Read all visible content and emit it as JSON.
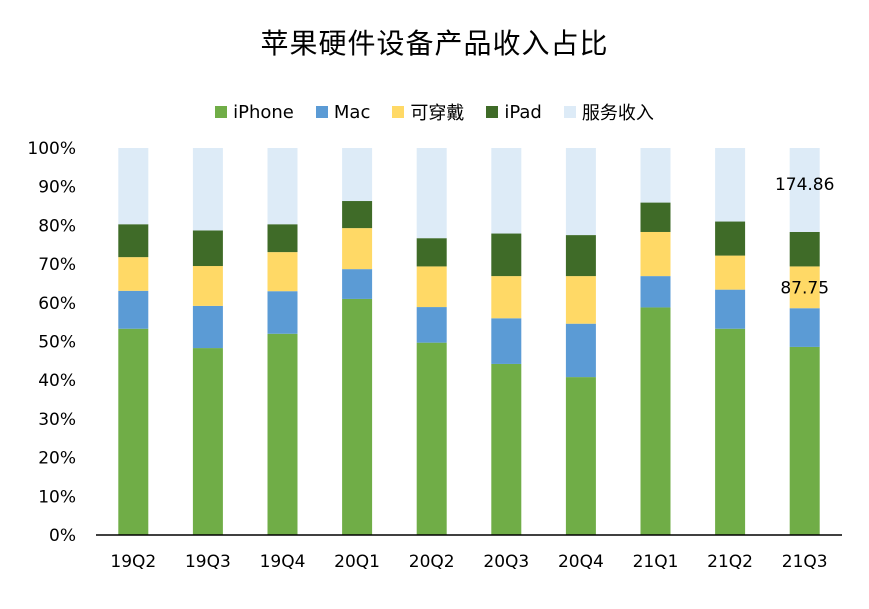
{
  "chart_data": {
    "type": "bar",
    "stacked": true,
    "title": "苹果硬件设备产品收入占比",
    "categories": [
      "19Q2",
      "19Q3",
      "19Q4",
      "20Q1",
      "20Q2",
      "20Q3",
      "20Q4",
      "21Q1",
      "21Q2",
      "21Q3"
    ],
    "series": [
      {
        "name": "iPhone",
        "color": "#70ad47",
        "values": [
          53.3,
          48.3,
          52.0,
          61.0,
          49.7,
          44.2,
          40.8,
          58.8,
          53.3,
          48.6
        ]
      },
      {
        "name": "Mac",
        "color": "#5b9bd5",
        "values": [
          9.8,
          10.9,
          11.0,
          7.7,
          9.2,
          11.8,
          13.8,
          8.1,
          10.1,
          10.0
        ]
      },
      {
        "name": "可穿戴",
        "color": "#ffd966",
        "values": [
          8.7,
          10.3,
          10.1,
          10.6,
          10.5,
          10.9,
          12.3,
          11.4,
          8.8,
          10.8
        ]
      },
      {
        "name": "iPad",
        "color": "#3f6b28",
        "values": [
          8.5,
          9.2,
          7.2,
          7.0,
          7.3,
          11.0,
          10.6,
          7.6,
          8.8,
          8.9
        ]
      },
      {
        "name": "服务收入",
        "color": "#ddebf7",
        "values": [
          19.7,
          21.3,
          19.7,
          13.7,
          23.3,
          22.1,
          22.5,
          14.1,
          19.0,
          21.7
        ]
      }
    ],
    "ylim": [
      0,
      100
    ],
    "yticks": [
      "0%",
      "10%",
      "20%",
      "30%",
      "40%",
      "50%",
      "60%",
      "70%",
      "80%",
      "90%",
      "100%"
    ],
    "annotations": [
      {
        "category": "21Q3",
        "series": "服务收入",
        "text": "174.86"
      },
      {
        "category": "21Q3",
        "series": "可穿戴",
        "text": "87.75"
      }
    ],
    "legend_position": "top",
    "grid": false
  }
}
